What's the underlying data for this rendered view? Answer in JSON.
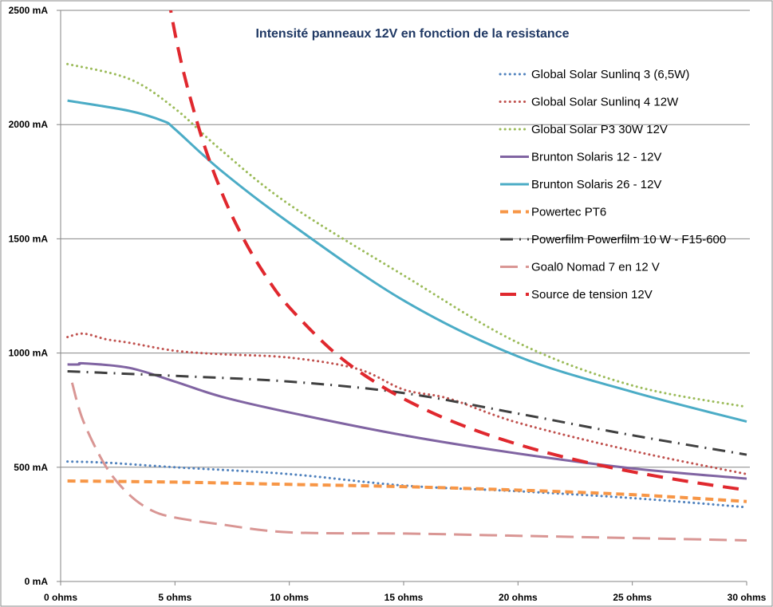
{
  "chart_data": {
    "type": "line",
    "title": "Intensité panneaux  12V en fonction de la resistance",
    "xlabel": "",
    "ylabel": "",
    "xlim": [
      0,
      30
    ],
    "ylim": [
      0,
      2500
    ],
    "x_ticks": [
      "0 ohms",
      "5 ohms",
      "10 ohms",
      "15 ohms",
      "20 ohms",
      "25 ohms",
      "30 ohms"
    ],
    "y_ticks": [
      "0 mA",
      "500 mA",
      "1000 mA",
      "1500 mA",
      "2000 mA",
      "2500 mA"
    ],
    "grid": "horizontal",
    "legend_position": "right",
    "series": [
      {
        "name": "Global Solar Sunlinq 3 (6,5W)",
        "color": "#4F81BD",
        "style": "dotted",
        "x": [
          0.3,
          2,
          5,
          10,
          15,
          20,
          25,
          30
        ],
        "values": [
          525,
          520,
          500,
          470,
          420,
          395,
          365,
          325
        ]
      },
      {
        "name": "Global Solar Sunlinq 4 12W",
        "color": "#C0504D",
        "style": "dotted",
        "x": [
          0.3,
          1,
          2,
          3,
          5,
          7,
          10,
          13,
          15,
          17,
          20,
          25,
          30
        ],
        "values": [
          1070,
          1085,
          1060,
          1045,
          1010,
          995,
          980,
          930,
          840,
          800,
          695,
          572,
          470
        ]
      },
      {
        "name": "Global Solar P3 30W 12V",
        "color": "#9BBB59",
        "style": "dotted",
        "x": [
          0.3,
          3,
          5,
          7,
          10,
          15,
          20,
          25,
          30
        ],
        "values": [
          2265,
          2200,
          2070,
          1890,
          1650,
          1340,
          1045,
          858,
          764
        ]
      },
      {
        "name": "Brunton Solaris 12 - 12V",
        "color": "#8064A2",
        "style": "solid",
        "x": [
          0.3,
          0.8,
          1,
          3,
          5,
          7,
          10,
          15,
          20,
          25,
          30
        ],
        "values": [
          950,
          950,
          955,
          935,
          875,
          810,
          740,
          640,
          560,
          495,
          450
        ]
      },
      {
        "name": "Brunton Solaris 26 - 12V",
        "color": "#4BACC6",
        "style": "solid",
        "x": [
          0.3,
          3,
          4.5,
          5,
          7,
          10,
          15,
          20,
          25,
          30
        ],
        "values": [
          2105,
          2060,
          2015,
          1980,
          1800,
          1570,
          1230,
          985,
          830,
          700
        ]
      },
      {
        "name": "Powertec PT6",
        "color": "#F79646",
        "style": "dashed",
        "x": [
          0.3,
          5,
          10,
          15,
          20,
          25,
          30
        ],
        "values": [
          440,
          435,
          425,
          415,
          400,
          380,
          350
        ]
      },
      {
        "name": "Powerfilm Powerfilm 10 W - F15-600",
        "color": "#404040",
        "style": "dashdot",
        "x": [
          0.3,
          5,
          10,
          15,
          20,
          25,
          30
        ],
        "values": [
          920,
          900,
          875,
          825,
          735,
          640,
          555
        ]
      },
      {
        "name": "Goal0 Nomad 7 en 12 V",
        "color": "#D99694",
        "style": "longdash",
        "x": [
          0.5,
          1,
          2,
          3,
          4,
          5,
          7,
          10,
          15,
          20,
          25,
          30
        ],
        "values": [
          870,
          700,
          500,
          380,
          310,
          280,
          250,
          215,
          210,
          200,
          190,
          180
        ]
      },
      {
        "name": "Source de tension 12V",
        "color": "#E0282E",
        "style": "bigdash",
        "x": [
          4,
          5,
          6,
          7,
          8,
          9,
          10,
          12,
          14,
          16,
          18,
          20,
          22,
          24,
          26,
          28,
          30
        ],
        "values": [
          3000,
          2400,
          2000,
          1714,
          1500,
          1333,
          1200,
          1000,
          857,
          750,
          667,
          600,
          545,
          500,
          462,
          429,
          400
        ]
      }
    ]
  }
}
